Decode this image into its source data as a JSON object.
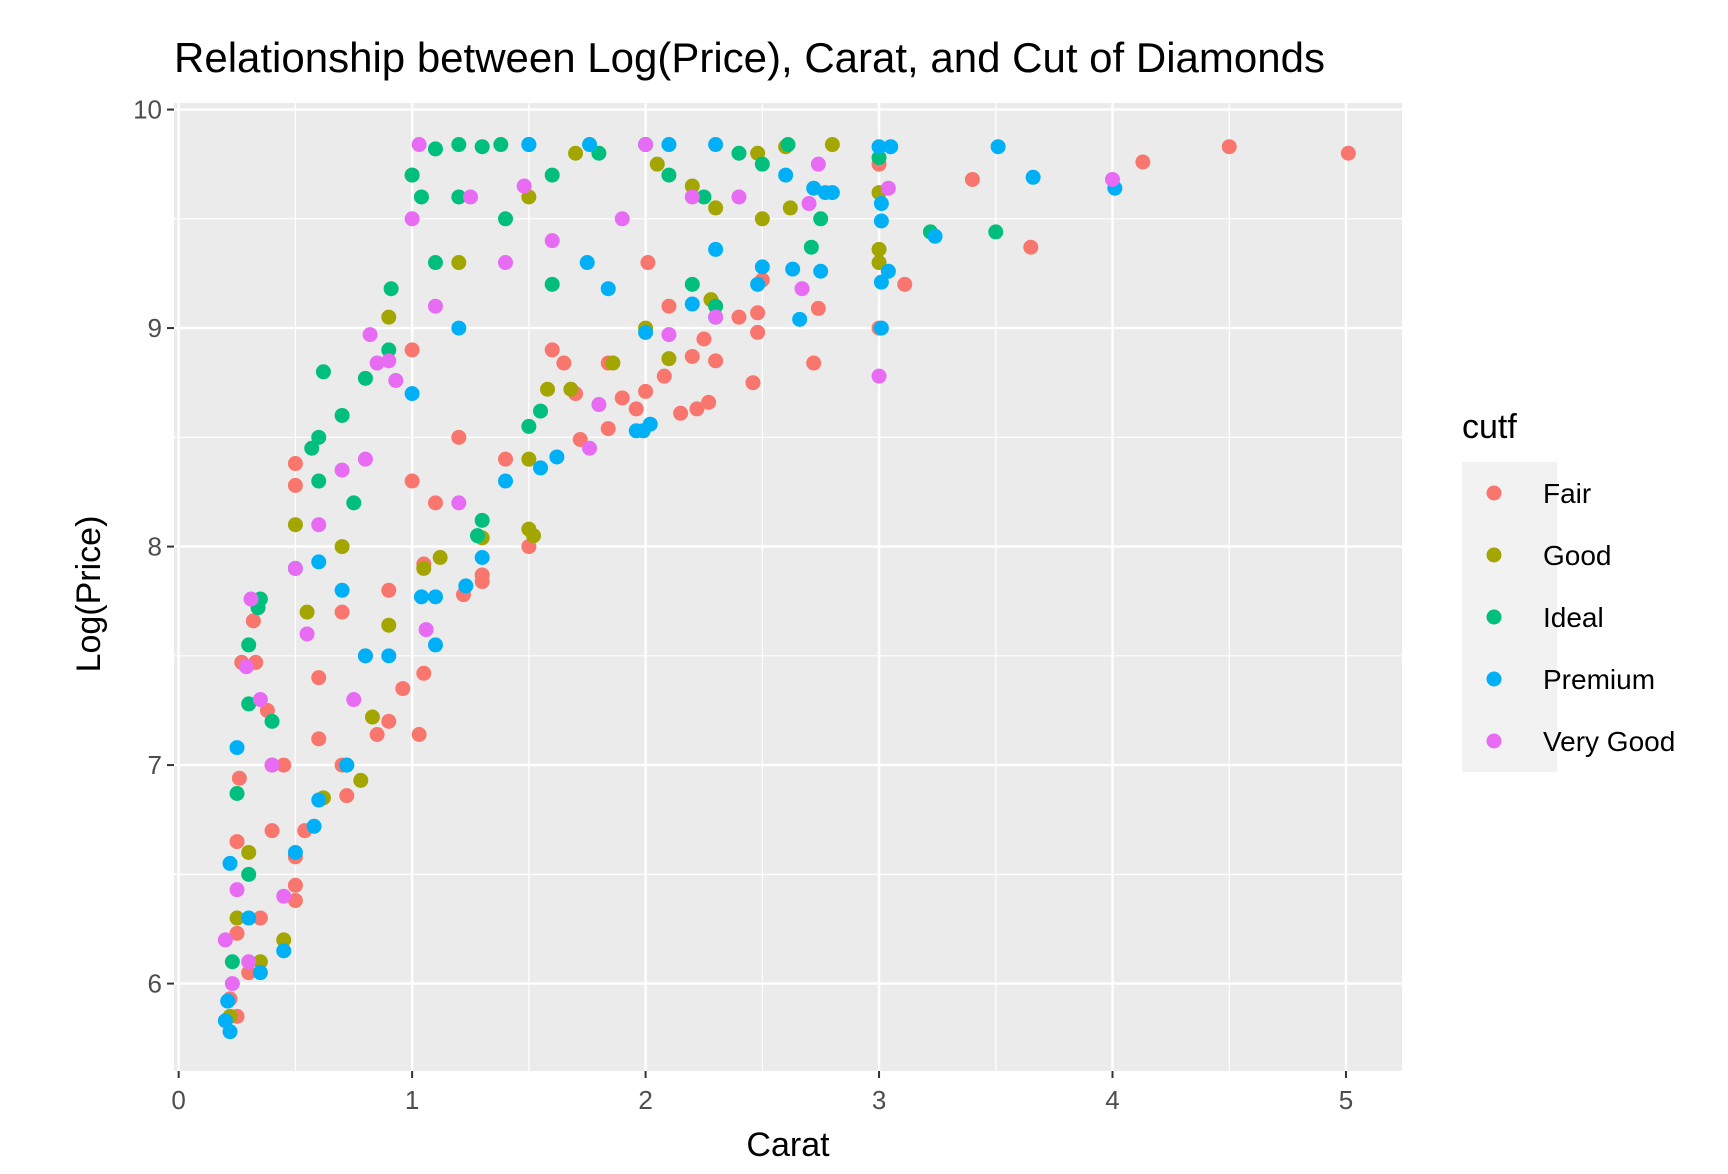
{
  "chart_data": {
    "type": "scatter",
    "title": "Relationship between Log(Price), Carat, and Cut of Diamonds",
    "xlabel": "Carat",
    "ylabel": "Log(Price)",
    "xlim": [
      -0.02,
      5.24
    ],
    "ylim": [
      5.6,
      10.03
    ],
    "x_ticks": [
      0,
      1,
      2,
      3,
      4,
      5
    ],
    "x_tick_labels": [
      "0",
      "1",
      "2",
      "3",
      "4",
      "5"
    ],
    "y_ticks": [
      6,
      7,
      8,
      9,
      10
    ],
    "y_tick_labels": [
      "6",
      "7",
      "8",
      "9",
      "10"
    ],
    "grid": true,
    "legend": {
      "title": "cutf",
      "position": "right",
      "entries": [
        {
          "name": "Fair",
          "color": "#F8766D"
        },
        {
          "name": "Good",
          "color": "#A3A500"
        },
        {
          "name": "Ideal",
          "color": "#00BF7D"
        },
        {
          "name": "Premium",
          "color": "#00B0F6"
        },
        {
          "name": "Very Good",
          "color": "#E76BF3"
        }
      ]
    },
    "series": [
      {
        "name": "Fair",
        "color": "#F8766D",
        "points": [
          [
            5.01,
            9.8
          ],
          [
            4.5,
            9.83
          ],
          [
            4.13,
            9.76
          ],
          [
            3.4,
            9.68
          ],
          [
            3.65,
            9.37
          ],
          [
            3.11,
            9.2
          ],
          [
            3.0,
            9.75
          ],
          [
            3.0,
            9.0
          ],
          [
            2.74,
            9.09
          ],
          [
            2.72,
            8.84
          ],
          [
            2.5,
            9.22
          ],
          [
            2.48,
            9.07
          ],
          [
            2.48,
            8.98
          ],
          [
            2.46,
            8.75
          ],
          [
            2.3,
            8.85
          ],
          [
            2.27,
            8.66
          ],
          [
            2.22,
            8.63
          ],
          [
            2.2,
            8.87
          ],
          [
            2.15,
            8.61
          ],
          [
            2.08,
            8.78
          ],
          [
            2.0,
            8.71
          ],
          [
            1.96,
            8.63
          ],
          [
            1.9,
            8.68
          ],
          [
            1.84,
            8.54
          ],
          [
            1.84,
            8.84
          ],
          [
            1.72,
            8.49
          ],
          [
            1.65,
            8.84
          ],
          [
            1.5,
            8.0
          ],
          [
            1.3,
            7.84
          ],
          [
            1.3,
            7.87
          ],
          [
            1.22,
            7.78
          ],
          [
            1.05,
            7.92
          ],
          [
            1.05,
            7.42
          ],
          [
            1.03,
            7.14
          ],
          [
            0.96,
            7.35
          ],
          [
            0.9,
            7.2
          ],
          [
            0.85,
            7.14
          ],
          [
            0.72,
            6.86
          ],
          [
            0.7,
            7.0
          ],
          [
            0.6,
            7.12
          ],
          [
            0.54,
            6.7
          ],
          [
            0.5,
            6.38
          ],
          [
            0.5,
            6.45
          ],
          [
            0.5,
            6.58
          ],
          [
            0.5,
            8.28
          ],
          [
            0.5,
            8.38
          ],
          [
            0.38,
            7.25
          ],
          [
            0.33,
            7.47
          ],
          [
            0.32,
            7.66
          ],
          [
            0.27,
            7.47
          ],
          [
            0.26,
            6.94
          ],
          [
            0.25,
            6.65
          ],
          [
            0.25,
            6.23
          ],
          [
            0.22,
            5.93
          ],
          [
            0.25,
            5.85
          ],
          [
            0.3,
            6.05
          ],
          [
            0.35,
            6.3
          ],
          [
            0.4,
            6.7
          ],
          [
            0.45,
            7.0
          ],
          [
            0.6,
            7.4
          ],
          [
            0.7,
            7.7
          ],
          [
            0.8,
            7.5
          ],
          [
            0.9,
            7.8
          ],
          [
            1.0,
            8.3
          ],
          [
            1.0,
            8.9
          ],
          [
            1.1,
            8.2
          ],
          [
            1.2,
            8.5
          ],
          [
            1.4,
            8.4
          ],
          [
            1.6,
            8.9
          ],
          [
            1.7,
            8.7
          ],
          [
            2.01,
            9.3
          ],
          [
            2.1,
            9.1
          ],
          [
            2.25,
            8.95
          ],
          [
            2.4,
            9.05
          ]
        ]
      },
      {
        "name": "Good",
        "color": "#A3A500",
        "points": [
          [
            2.8,
            9.84
          ],
          [
            2.6,
            9.83
          ],
          [
            2.48,
            9.8
          ],
          [
            3.0,
            9.62
          ],
          [
            3.0,
            9.36
          ],
          [
            3.0,
            9.3
          ],
          [
            2.62,
            9.55
          ],
          [
            2.5,
            9.5
          ],
          [
            2.3,
            9.55
          ],
          [
            2.28,
            9.13
          ],
          [
            2.1,
            8.86
          ],
          [
            2.0,
            9.0
          ],
          [
            1.86,
            8.84
          ],
          [
            1.68,
            8.72
          ],
          [
            1.58,
            8.72
          ],
          [
            1.52,
            8.05
          ],
          [
            1.5,
            8.08
          ],
          [
            1.5,
            8.4
          ],
          [
            1.3,
            8.04
          ],
          [
            1.12,
            7.95
          ],
          [
            1.05,
            7.9
          ],
          [
            0.9,
            7.64
          ],
          [
            0.83,
            7.22
          ],
          [
            0.78,
            6.93
          ],
          [
            0.72,
            7.0
          ],
          [
            0.62,
            6.85
          ],
          [
            0.45,
            6.2
          ],
          [
            0.35,
            6.1
          ],
          [
            0.25,
            6.3
          ],
          [
            0.3,
            6.6
          ],
          [
            0.4,
            7.0
          ],
          [
            0.55,
            7.7
          ],
          [
            0.7,
            8.0
          ],
          [
            0.9,
            9.05
          ],
          [
            1.0,
            9.7
          ],
          [
            1.2,
            9.3
          ],
          [
            1.5,
            9.6
          ],
          [
            1.7,
            9.8
          ],
          [
            2.05,
            9.75
          ],
          [
            2.2,
            9.65
          ],
          [
            0.22,
            5.85
          ],
          [
            0.5,
            8.1
          ]
        ]
      },
      {
        "name": "Ideal",
        "color": "#00BF7D",
        "points": [
          [
            3.5,
            9.44
          ],
          [
            3.22,
            9.44
          ],
          [
            3.0,
            9.78
          ],
          [
            2.75,
            9.5
          ],
          [
            2.71,
            9.37
          ],
          [
            2.61,
            9.84
          ],
          [
            2.5,
            9.75
          ],
          [
            2.3,
            9.1
          ],
          [
            2.25,
            9.6
          ],
          [
            2.2,
            9.2
          ],
          [
            1.6,
            9.2
          ],
          [
            1.5,
            9.84
          ],
          [
            1.38,
            9.84
          ],
          [
            1.3,
            9.83
          ],
          [
            1.3,
            8.12
          ],
          [
            1.28,
            8.05
          ],
          [
            1.2,
            9.84
          ],
          [
            1.1,
            9.82
          ],
          [
            1.04,
            9.6
          ],
          [
            1.0,
            9.7
          ],
          [
            0.91,
            9.18
          ],
          [
            0.8,
            8.77
          ],
          [
            0.7,
            8.6
          ],
          [
            0.62,
            8.8
          ],
          [
            0.6,
            8.5
          ],
          [
            0.57,
            8.45
          ],
          [
            0.35,
            7.76
          ],
          [
            0.34,
            7.72
          ],
          [
            0.3,
            7.55
          ],
          [
            0.3,
            7.28
          ],
          [
            0.25,
            6.87
          ],
          [
            0.23,
            6.1
          ],
          [
            0.3,
            6.5
          ],
          [
            0.4,
            7.2
          ],
          [
            0.5,
            7.9
          ],
          [
            0.6,
            8.3
          ],
          [
            0.75,
            8.2
          ],
          [
            0.9,
            8.9
          ],
          [
            1.1,
            9.3
          ],
          [
            1.2,
            9.6
          ],
          [
            1.4,
            9.5
          ],
          [
            1.6,
            9.7
          ],
          [
            1.8,
            9.8
          ],
          [
            2.0,
            9.84
          ],
          [
            2.1,
            9.7
          ],
          [
            2.4,
            9.8
          ],
          [
            1.5,
            8.55
          ],
          [
            1.55,
            8.62
          ]
        ]
      },
      {
        "name": "Premium",
        "color": "#00B0F6",
        "points": [
          [
            3.51,
            9.83
          ],
          [
            3.66,
            9.69
          ],
          [
            4.01,
            9.64
          ],
          [
            3.24,
            9.42
          ],
          [
            3.05,
            9.83
          ],
          [
            3.0,
            9.83
          ],
          [
            3.01,
            9.57
          ],
          [
            3.01,
            9.49
          ],
          [
            3.04,
            9.26
          ],
          [
            3.01,
            9.21
          ],
          [
            3.01,
            9.0
          ],
          [
            2.77,
            9.62
          ],
          [
            2.72,
            9.64
          ],
          [
            2.75,
            9.26
          ],
          [
            2.63,
            9.27
          ],
          [
            2.66,
            9.04
          ],
          [
            2.5,
            9.28
          ],
          [
            2.48,
            9.2
          ],
          [
            2.3,
            9.05
          ],
          [
            2.3,
            9.36
          ],
          [
            2.2,
            9.11
          ],
          [
            2.0,
            8.98
          ],
          [
            2.02,
            8.56
          ],
          [
            1.96,
            8.53
          ],
          [
            1.99,
            8.53
          ],
          [
            1.84,
            9.18
          ],
          [
            1.75,
            9.3
          ],
          [
            1.62,
            8.41
          ],
          [
            1.55,
            8.36
          ],
          [
            1.5,
            9.84
          ],
          [
            1.4,
            8.3
          ],
          [
            1.3,
            7.95
          ],
          [
            1.23,
            7.82
          ],
          [
            1.1,
            7.77
          ],
          [
            1.1,
            7.55
          ],
          [
            1.04,
            7.77
          ],
          [
            0.9,
            7.5
          ],
          [
            0.8,
            7.5
          ],
          [
            0.72,
            7.0
          ],
          [
            0.6,
            6.84
          ],
          [
            0.58,
            6.72
          ],
          [
            0.5,
            6.6
          ],
          [
            0.45,
            6.15
          ],
          [
            0.35,
            6.05
          ],
          [
            0.3,
            6.3
          ],
          [
            0.25,
            7.08
          ],
          [
            0.22,
            6.55
          ],
          [
            0.21,
            5.92
          ],
          [
            0.2,
            5.83
          ],
          [
            0.22,
            5.78
          ],
          [
            2.6,
            9.7
          ],
          [
            2.8,
            9.62
          ],
          [
            1.76,
            9.84
          ],
          [
            2.0,
            9.84
          ],
          [
            2.1,
            9.84
          ],
          [
            2.3,
            9.84
          ],
          [
            1.2,
            9.0
          ],
          [
            1.0,
            8.7
          ],
          [
            0.6,
            7.93
          ],
          [
            0.7,
            7.8
          ]
        ]
      },
      {
        "name": "Very Good",
        "color": "#E76BF3",
        "points": [
          [
            4.0,
            9.68
          ],
          [
            3.04,
            9.64
          ],
          [
            3.0,
            8.78
          ],
          [
            2.74,
            9.75
          ],
          [
            2.7,
            9.57
          ],
          [
            2.67,
            9.18
          ],
          [
            2.3,
            9.05
          ],
          [
            2.1,
            8.97
          ],
          [
            2.0,
            9.84
          ],
          [
            1.8,
            8.65
          ],
          [
            1.76,
            8.45
          ],
          [
            1.48,
            9.65
          ],
          [
            1.25,
            9.6
          ],
          [
            1.03,
            9.84
          ],
          [
            1.0,
            9.5
          ],
          [
            0.9,
            8.85
          ],
          [
            0.85,
            8.84
          ],
          [
            0.82,
            8.97
          ],
          [
            0.7,
            8.35
          ],
          [
            0.6,
            8.1
          ],
          [
            0.5,
            7.9
          ],
          [
            0.35,
            7.3
          ],
          [
            0.31,
            7.76
          ],
          [
            0.29,
            7.45
          ],
          [
            0.25,
            6.43
          ],
          [
            0.23,
            6.0
          ],
          [
            0.2,
            6.2
          ],
          [
            0.3,
            6.1
          ],
          [
            0.4,
            7.0
          ],
          [
            0.55,
            7.6
          ],
          [
            0.8,
            8.4
          ],
          [
            0.93,
            8.76
          ],
          [
            1.1,
            9.1
          ],
          [
            1.4,
            9.3
          ],
          [
            1.6,
            9.4
          ],
          [
            1.9,
            9.5
          ],
          [
            2.2,
            9.6
          ],
          [
            2.4,
            9.6
          ],
          [
            1.2,
            8.2
          ],
          [
            0.75,
            7.3
          ],
          [
            1.06,
            7.62
          ],
          [
            0.45,
            6.4
          ]
        ]
      }
    ]
  }
}
